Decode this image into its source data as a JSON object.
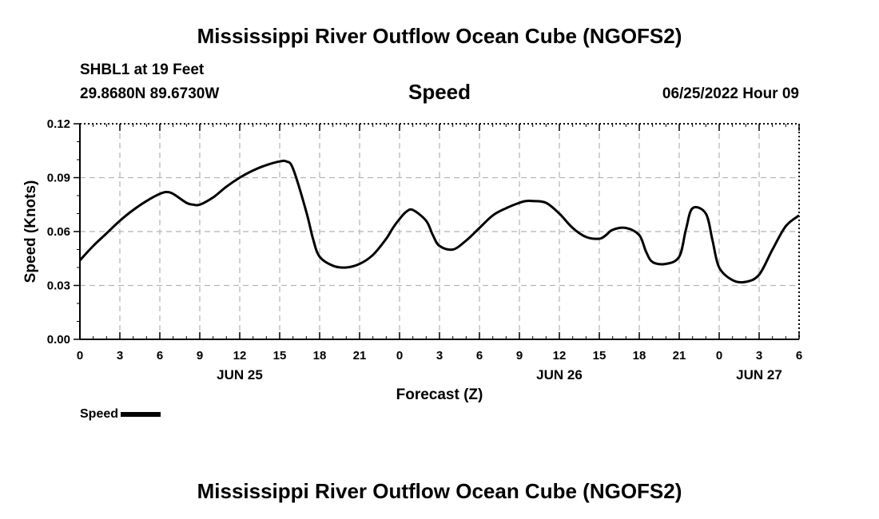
{
  "header": {
    "title": "Mississippi River Outflow Ocean Cube (NGOFS2)",
    "station": "SHBL1 at 19 Feet",
    "coords": "29.8680N  89.6730W",
    "plot_title": "Speed",
    "timestamp": "06/25/2022 Hour 09"
  },
  "footer": {
    "title": "Mississippi River Outflow Ocean Cube (NGOFS2)"
  },
  "legend": {
    "label": "Speed"
  },
  "chart_data": {
    "type": "line",
    "title": "Speed",
    "xlabel": "Forecast (Z)",
    "ylabel": "Speed (Knots)",
    "xlim": [
      0,
      54
    ],
    "ylim": [
      0,
      0.12
    ],
    "x_ticks": [
      0,
      3,
      6,
      9,
      12,
      15,
      18,
      21,
      24,
      27,
      30,
      33,
      36,
      39,
      42,
      45,
      48,
      51,
      54
    ],
    "x_tick_labels": [
      "0",
      "3",
      "6",
      "9",
      "12",
      "15",
      "18",
      "21",
      "0",
      "3",
      "6",
      "9",
      "12",
      "15",
      "18",
      "21",
      "0",
      "3",
      "6"
    ],
    "y_ticks": [
      0,
      0.03,
      0.06,
      0.09,
      0.12
    ],
    "y_tick_labels": [
      "0.00",
      "0.03",
      "0.06",
      "0.09",
      "0.12"
    ],
    "date_labels": [
      {
        "x": 12,
        "label": "JUN 25"
      },
      {
        "x": 36,
        "label": "JUN 26"
      },
      {
        "x": 51,
        "label": "JUN 27"
      }
    ],
    "grid": true,
    "legend_position": "bottom-left",
    "series": [
      {
        "name": "Speed",
        "color": "#000000",
        "x": [
          0,
          1,
          2,
          3,
          4,
          5,
          6,
          6.5,
          7,
          8,
          8.5,
          9,
          10,
          11,
          12,
          13,
          14,
          15,
          15.5,
          16,
          17,
          17.5,
          18,
          19,
          20,
          21,
          22,
          23,
          23.5,
          24,
          24.5,
          25,
          26,
          26.5,
          27,
          28,
          29,
          30,
          31,
          32,
          33,
          33.5,
          34,
          35,
          36,
          37,
          38,
          39,
          39.5,
          40,
          41,
          42,
          42.5,
          43,
          44,
          45,
          45.5,
          46,
          47,
          47.5,
          48,
          49,
          50,
          51,
          52,
          53,
          54
        ],
        "y": [
          0.044,
          0.052,
          0.059,
          0.066,
          0.072,
          0.077,
          0.081,
          0.082,
          0.081,
          0.076,
          0.075,
          0.075,
          0.079,
          0.085,
          0.09,
          0.094,
          0.097,
          0.099,
          0.099,
          0.095,
          0.071,
          0.056,
          0.046,
          0.041,
          0.04,
          0.042,
          0.047,
          0.056,
          0.062,
          0.067,
          0.071,
          0.072,
          0.066,
          0.058,
          0.052,
          0.05,
          0.055,
          0.062,
          0.069,
          0.073,
          0.076,
          0.077,
          0.077,
          0.076,
          0.07,
          0.062,
          0.057,
          0.056,
          0.058,
          0.061,
          0.062,
          0.058,
          0.049,
          0.043,
          0.042,
          0.046,
          0.061,
          0.073,
          0.07,
          0.055,
          0.04,
          0.033,
          0.032,
          0.036,
          0.05,
          0.063,
          0.069
        ],
        "y_extra_note": ""
      }
    ]
  }
}
